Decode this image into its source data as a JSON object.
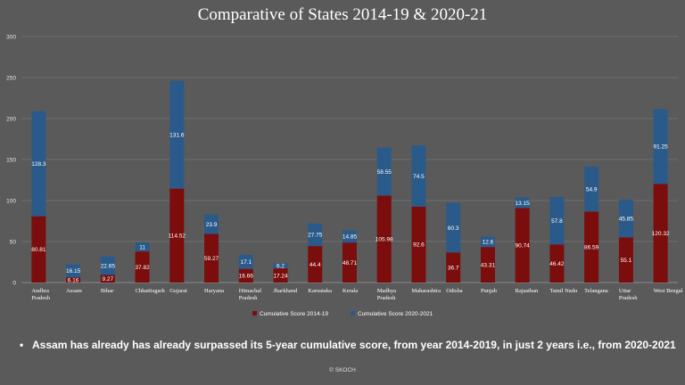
{
  "chart_data": {
    "type": "bar",
    "stacked": true,
    "title": "Comparative of States 2014-19 & 2020-21",
    "categories": [
      "Andhra Pradesh",
      "Assam",
      "Bihar",
      "Chhattisgarh",
      "Gujarat",
      "Haryana",
      "Himachal Pradesh",
      "Jharkhand",
      "Karnataka",
      "Kerala",
      "Madhya Pradesh",
      "Maharashtra",
      "Odisha",
      "Punjab",
      "Rajasthan",
      "Tamil Nadu",
      "Telangana",
      "Uttar Pradesh",
      "West Bengal"
    ],
    "series": [
      {
        "name": "Cumulative Score 2014-19",
        "color": "#7b0d0d",
        "values": [
          80.81,
          6.16,
          9.27,
          37.82,
          114.52,
          59.27,
          16.66,
          17.24,
          44.4,
          48.71,
          105.98,
          92.6,
          36.7,
          43.31,
          90.74,
          46.42,
          86.59,
          55.1,
          120.32
        ]
      },
      {
        "name": "Cumulative Score 2020-2021",
        "color": "#2a5a8a",
        "values": [
          128.3,
          16.15,
          22.65,
          11,
          131.6,
          23.9,
          17.1,
          6.2,
          27.75,
          14.85,
          58.55,
          74.5,
          60.3,
          12.6,
          13.15,
          57.8,
          54.9,
          45.85,
          91.25
        ]
      }
    ],
    "yticks": [
      0,
      50,
      100,
      150,
      200,
      250,
      300
    ],
    "ylim": [
      0,
      300
    ],
    "grid": true,
    "legend": "bottom"
  },
  "note": "Assam has already has already surpassed its 5-year cumulative score, from year 2014-2019,  in just 2 years i.e., from 2020-2021",
  "footer": "© SKOCH"
}
